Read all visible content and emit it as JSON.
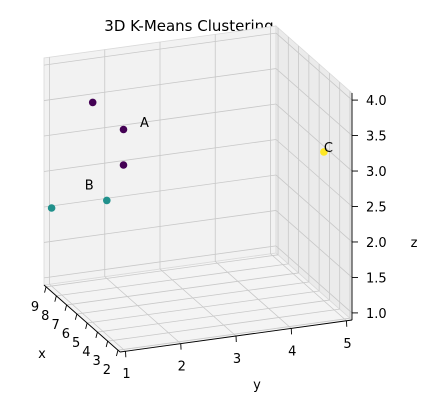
{
  "chart_data": {
    "type": "scatter",
    "title": "3D K-Means Clustering",
    "xlabel": "x",
    "ylabel": "y",
    "zlabel": "z",
    "xticks": [
      "2",
      "3",
      "4",
      "5",
      "6",
      "7",
      "8",
      "9"
    ],
    "yticks": [
      "1",
      "2",
      "3",
      "4",
      "5"
    ],
    "zticks": [
      "1.0",
      "1.5",
      "2.0",
      "2.5",
      "3.0",
      "3.5",
      "4.0"
    ],
    "xlim": [
      1.8,
      9.2
    ],
    "ylim": [
      0.9,
      5.1
    ],
    "zlim": [
      0.9,
      4.1
    ],
    "grid": true,
    "points": [
      {
        "x": 2,
        "y": 1,
        "z": 4,
        "cluster": 0,
        "color": "#440154"
      },
      {
        "x": 2,
        "y": 1,
        "z": 3.5,
        "cluster": 0,
        "color": "#440154"
      },
      {
        "x": 5,
        "y": 1,
        "z": 4,
        "cluster": 0,
        "color": "#440154"
      },
      {
        "x": 9,
        "y": 1,
        "z": 2,
        "cluster": 1,
        "color": "#21918c"
      },
      {
        "x": 9,
        "y": 2,
        "z": 2,
        "cluster": 1,
        "color": "#21918c"
      },
      {
        "x": 4,
        "y": 5,
        "z": 3,
        "cluster": 2,
        "color": "#fde725"
      }
    ],
    "annotations": [
      {
        "text": "A",
        "x": 2,
        "y": 1.3,
        "z": 4
      },
      {
        "text": "B",
        "x": 9,
        "y": 1.6,
        "z": 2.2
      },
      {
        "text": "C",
        "x": 4,
        "y": 5,
        "z": 3
      }
    ]
  }
}
